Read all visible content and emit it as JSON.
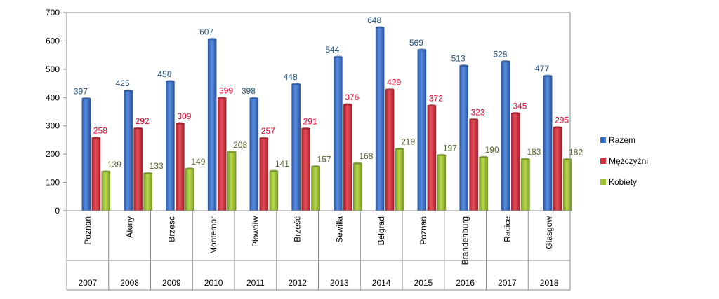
{
  "chart_data": {
    "type": "bar",
    "categories": [
      "Poznań",
      "Ateny",
      "Brześć",
      "Montemor",
      "Płowdiw",
      "Brześć",
      "Sewilla",
      "Belgrad",
      "Poznań",
      "Brandenburg",
      "Racice",
      "Glasgow"
    ],
    "years": [
      "2007",
      "2008",
      "2009",
      "2010",
      "2011",
      "2012",
      "2013",
      "2014",
      "2015",
      "2016",
      "2017",
      "2018"
    ],
    "series": [
      {
        "name": "Razem",
        "values": [
          397,
          425,
          458,
          607,
          398,
          448,
          544,
          648,
          569,
          513,
          528,
          477
        ],
        "color": "#3A6FC9",
        "label_color": "#1F4E79"
      },
      {
        "name": "Mężczyźni",
        "values": [
          258,
          292,
          309,
          399,
          257,
          291,
          376,
          429,
          372,
          323,
          345,
          295
        ],
        "color": "#D12E3B",
        "label_color": "#E0002A"
      },
      {
        "name": "Kobiety",
        "values": [
          139,
          133,
          149,
          208,
          141,
          157,
          168,
          219,
          197,
          190,
          183,
          182
        ],
        "color": "#9CC230",
        "label_color": "#4F6228"
      }
    ],
    "ylim": [
      0,
      700
    ],
    "yticks": [
      0,
      100,
      200,
      300,
      400,
      500,
      600,
      700
    ],
    "grid": false,
    "legend_position": "right"
  }
}
